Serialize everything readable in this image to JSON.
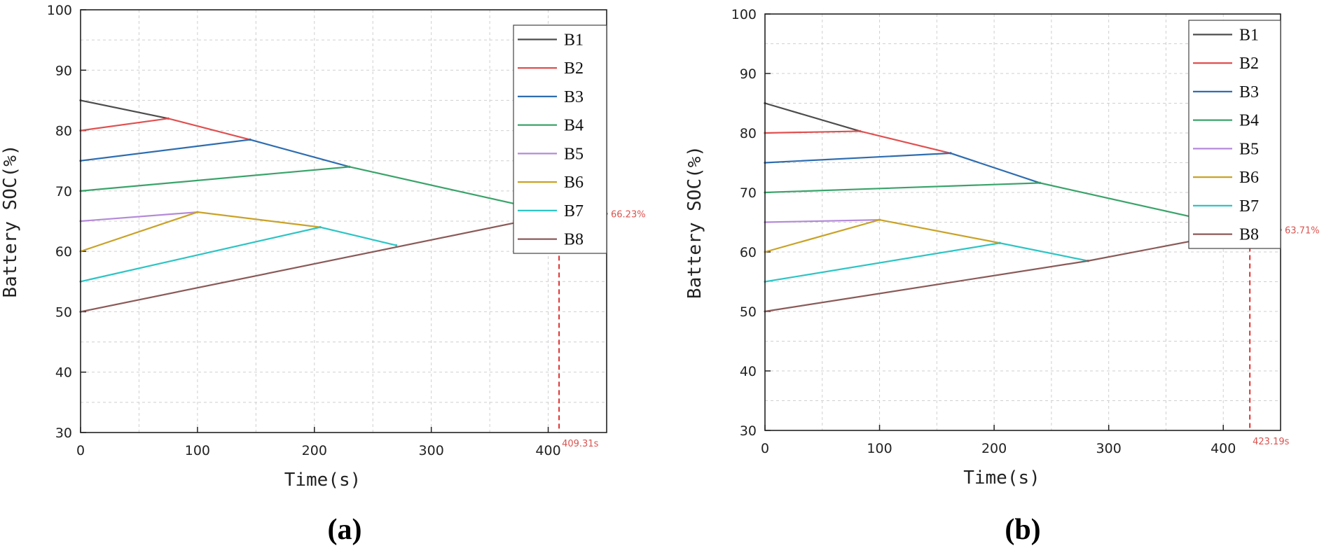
{
  "chart_data": [
    {
      "type": "line",
      "panel_label": "(a)",
      "xlabel": "Time(s)",
      "ylabel": "Battery SOC(%)",
      "xlim": [
        0,
        450
      ],
      "ylim": [
        30,
        100
      ],
      "xticks": [
        "0",
        "100",
        "200",
        "300",
        "400"
      ],
      "yticks": [
        "30",
        "40",
        "50",
        "60",
        "70",
        "80",
        "90",
        "100"
      ],
      "grid": true,
      "legend_position": "top-right",
      "colors": [
        "#4d4d4d",
        "#e05050",
        "#2e6db0",
        "#3aa36a",
        "#b48ad8",
        "#c9a227",
        "#2ec4c4",
        "#8a5a58"
      ],
      "series": [
        {
          "name": "B1",
          "x": [
            0,
            75
          ],
          "y": [
            85,
            82
          ]
        },
        {
          "name": "B2",
          "x": [
            0,
            75,
            145
          ],
          "y": [
            80,
            82,
            78.5
          ]
        },
        {
          "name": "B3",
          "x": [
            0,
            145,
            230
          ],
          "y": [
            75,
            78.5,
            74
          ]
        },
        {
          "name": "B4",
          "x": [
            0,
            230,
            409.31
          ],
          "y": [
            70,
            74,
            66.23
          ]
        },
        {
          "name": "B5",
          "x": [
            0,
            100
          ],
          "y": [
            65,
            66.5
          ]
        },
        {
          "name": "B6",
          "x": [
            0,
            100,
            205
          ],
          "y": [
            60,
            66.5,
            64
          ]
        },
        {
          "name": "B7",
          "x": [
            0,
            205,
            270
          ],
          "y": [
            55,
            64,
            61
          ]
        },
        {
          "name": "B8",
          "x": [
            0,
            409.31,
            450
          ],
          "y": [
            50,
            66.23,
            66.23
          ]
        }
      ],
      "annotations": {
        "final_time": 409.31,
        "final_soc": 66.23,
        "time_label": "409.31s",
        "soc_label": "66.23%"
      }
    },
    {
      "type": "line",
      "panel_label": "(b)",
      "xlabel": "Time(s)",
      "ylabel": "Battery SOC(%)",
      "xlim": [
        0,
        450
      ],
      "ylim": [
        30,
        100
      ],
      "xticks": [
        "0",
        "100",
        "200",
        "300",
        "400"
      ],
      "yticks": [
        "30",
        "40",
        "50",
        "60",
        "70",
        "80",
        "90",
        "100"
      ],
      "grid": true,
      "legend_position": "top-right",
      "colors": [
        "#4d4d4d",
        "#e05050",
        "#2e6db0",
        "#3aa36a",
        "#b48ad8",
        "#c9a227",
        "#2ec4c4",
        "#8a5a58"
      ],
      "series": [
        {
          "name": "B1",
          "x": [
            0,
            83
          ],
          "y": [
            85,
            80.3
          ]
        },
        {
          "name": "B2",
          "x": [
            0,
            83,
            162
          ],
          "y": [
            80,
            80.3,
            76.6
          ]
        },
        {
          "name": "B3",
          "x": [
            0,
            162,
            240
          ],
          "y": [
            75,
            76.6,
            71.6
          ]
        },
        {
          "name": "B4",
          "x": [
            0,
            240,
            423.19
          ],
          "y": [
            70,
            71.6,
            63.71
          ]
        },
        {
          "name": "B5",
          "x": [
            0,
            100
          ],
          "y": [
            65,
            65.4
          ]
        },
        {
          "name": "B6",
          "x": [
            0,
            100,
            205
          ],
          "y": [
            60,
            65.4,
            61.5
          ]
        },
        {
          "name": "B7",
          "x": [
            0,
            205,
            282
          ],
          "y": [
            55,
            61.5,
            58.5
          ]
        },
        {
          "name": "B8",
          "x": [
            0,
            282,
            423.19,
            450
          ],
          "y": [
            50,
            58.5,
            63.71,
            63.71
          ]
        }
      ],
      "annotations": {
        "final_time": 423.19,
        "final_soc": 63.71,
        "time_label": "423.19s",
        "soc_label": "63.71%"
      }
    }
  ]
}
